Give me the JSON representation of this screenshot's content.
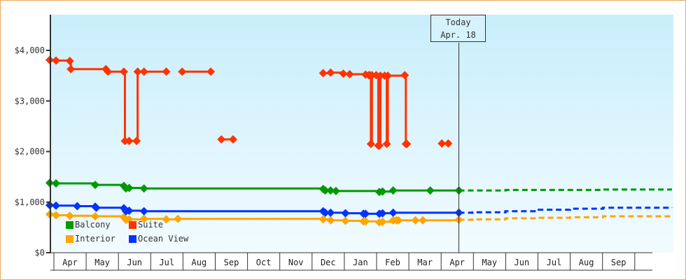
{
  "chart_data": {
    "type": "line",
    "title": "",
    "xlabel": "",
    "ylabel": "",
    "ylim": [
      0,
      4700
    ],
    "grid": false,
    "legend_placement": "bottom-left",
    "y_ticks": [
      "$0",
      "$1,000",
      "$2,000",
      "$3,000",
      "$4,000"
    ],
    "y_tick_values": [
      0,
      1000,
      2000,
      3000,
      4000
    ],
    "x_ticks": [
      "Apr",
      "May",
      "Jun",
      "Jul",
      "Aug",
      "Sep",
      "Oct",
      "Nov",
      "Dec",
      "Jan",
      "Feb",
      "Mar",
      "Apr",
      "May",
      "Jun",
      "Jul",
      "Aug",
      "Sep"
    ],
    "today": {
      "label": "Today",
      "date": "Apr. 18",
      "x": "Apr 18 (next year)"
    },
    "series": [
      {
        "name": "Balcony",
        "color": "#009900",
        "points": [
          [
            "Mar 28",
            1380
          ],
          [
            "Apr 3",
            1370
          ],
          [
            "May 10",
            1340
          ],
          [
            "Jun 6",
            1320
          ],
          [
            "Jun 8",
            1270
          ],
          [
            "Jun 11",
            1280
          ],
          [
            "Jun 25",
            1270
          ],
          [
            "Dec 11",
            1260
          ],
          [
            "Dec 13",
            1230
          ],
          [
            "Dec 18",
            1230
          ],
          [
            "Dec 23",
            1220
          ],
          [
            "Feb 2",
            1200
          ],
          [
            "Feb 5",
            1210
          ],
          [
            "Feb 15",
            1230
          ],
          [
            "Mar 22",
            1230
          ],
          [
            "Apr 18",
            1230
          ]
        ],
        "projection": [
          [
            "Apr 18",
            1230
          ],
          [
            "May 31",
            1230
          ],
          [
            "Jun 1",
            1240
          ],
          [
            "Aug 31",
            1240
          ],
          [
            "Sep 1",
            1250
          ],
          [
            "Nov 5",
            1250
          ]
        ]
      },
      {
        "name": "Suite",
        "color": "#ff3300",
        "points": [
          [
            "Mar 28",
            3810
          ],
          [
            "Apr 3",
            3800
          ],
          [
            "Apr 16",
            3790
          ],
          [
            "Apr 17",
            3630
          ],
          [
            "May 20",
            3630
          ],
          [
            "May 22",
            3580
          ],
          [
            "Jun 6",
            3580
          ],
          [
            "Jun 7",
            2210
          ],
          [
            "Jun 11",
            2210
          ],
          [
            "Jun 18",
            2210
          ],
          [
            "Jun 19",
            3580
          ],
          [
            "Jun 25",
            3580
          ],
          [
            "Jul 16",
            3580
          ],
          null,
          [
            "Jul 31",
            3580
          ],
          [
            "Aug 27",
            3580
          ],
          null,
          [
            "Sep 6",
            2240
          ],
          [
            "Sep 17",
            2240
          ],
          null,
          [
            "Dec 11",
            3550
          ],
          [
            "Dec 18",
            3560
          ],
          [
            "Dec 30",
            3540
          ],
          [
            "Jan 5",
            3530
          ],
          [
            "Jan 20",
            3520
          ],
          [
            "Jan 23",
            3510
          ],
          [
            "Jan 24",
            3510
          ],
          [
            "Jan 25",
            2150
          ],
          [
            "Jan 26",
            3510
          ],
          [
            "Jan 30",
            3510
          ],
          [
            "Feb 1",
            2120
          ],
          [
            "Feb 2",
            2120
          ],
          [
            "Feb 3",
            3500
          ],
          [
            "Feb 7",
            3500
          ],
          [
            "Feb 9",
            2150
          ],
          [
            "Feb 10",
            3500
          ],
          [
            "Feb 26",
            3510
          ],
          [
            "Feb 27",
            2150
          ],
          [
            "Feb 28",
            2150
          ],
          null,
          [
            "Apr 2",
            2160
          ],
          [
            "Apr 8",
            2160
          ]
        ],
        "projection": []
      },
      {
        "name": "Interior",
        "color": "#ffa500",
        "points": [
          [
            "Mar 28",
            760
          ],
          [
            "Apr 3",
            740
          ],
          [
            "Apr 16",
            730
          ],
          [
            "May 10",
            720
          ],
          [
            "Jun 6",
            700
          ],
          [
            "Jun 8",
            650
          ],
          [
            "Jun 11",
            660
          ],
          [
            "Jun 25",
            670
          ],
          [
            "Jul 16",
            660
          ],
          [
            "Jul 27",
            670
          ],
          [
            "Dec 11",
            660
          ],
          [
            "Dec 18",
            640
          ],
          [
            "Jan 1",
            630
          ],
          [
            "Jan 18",
            620
          ],
          [
            "Jan 20",
            620
          ],
          [
            "Feb 2",
            600
          ],
          [
            "Feb 5",
            610
          ],
          [
            "Feb 15",
            640
          ],
          [
            "Feb 18",
            640
          ],
          [
            "Feb 20",
            640
          ],
          [
            "Mar 8",
            640
          ],
          [
            "Mar 15",
            640
          ],
          [
            "Apr 18",
            650
          ]
        ],
        "projection": [
          [
            "Apr 18",
            650
          ],
          [
            "May 1",
            660
          ],
          [
            "Jun 1",
            680
          ],
          [
            "Jul 1",
            690
          ],
          [
            "Aug 1",
            700
          ],
          [
            "Sep 1",
            720
          ],
          [
            "Nov 5",
            730
          ]
        ]
      },
      {
        "name": "Ocean View",
        "color": "#0033ff",
        "points": [
          [
            "Mar 28",
            940
          ],
          [
            "Apr 3",
            930
          ],
          [
            "Apr 23",
            920
          ],
          [
            "May 10",
            910
          ],
          [
            "May 11",
            890
          ],
          [
            "Jun 6",
            880
          ],
          [
            "Jun 8",
            820
          ],
          [
            "Jun 11",
            830
          ],
          [
            "Jun 25",
            820
          ],
          [
            "Dec 11",
            820
          ],
          [
            "Dec 13",
            790
          ],
          [
            "Dec 18",
            790
          ],
          [
            "Jan 1",
            780
          ],
          [
            "Jan 18",
            770
          ],
          [
            "Jan 20",
            770
          ],
          [
            "Feb 2",
            770
          ],
          [
            "Feb 5",
            780
          ],
          [
            "Feb 15",
            790
          ],
          [
            "Apr 18",
            790
          ]
        ],
        "projection": [
          [
            "Apr 18",
            790
          ],
          [
            "May 1",
            800
          ],
          [
            "Jun 1",
            820
          ],
          [
            "Jul 1",
            850
          ],
          [
            "Aug 1",
            870
          ],
          [
            "Sep 1",
            890
          ],
          [
            "Nov 5",
            900
          ]
        ]
      }
    ]
  }
}
